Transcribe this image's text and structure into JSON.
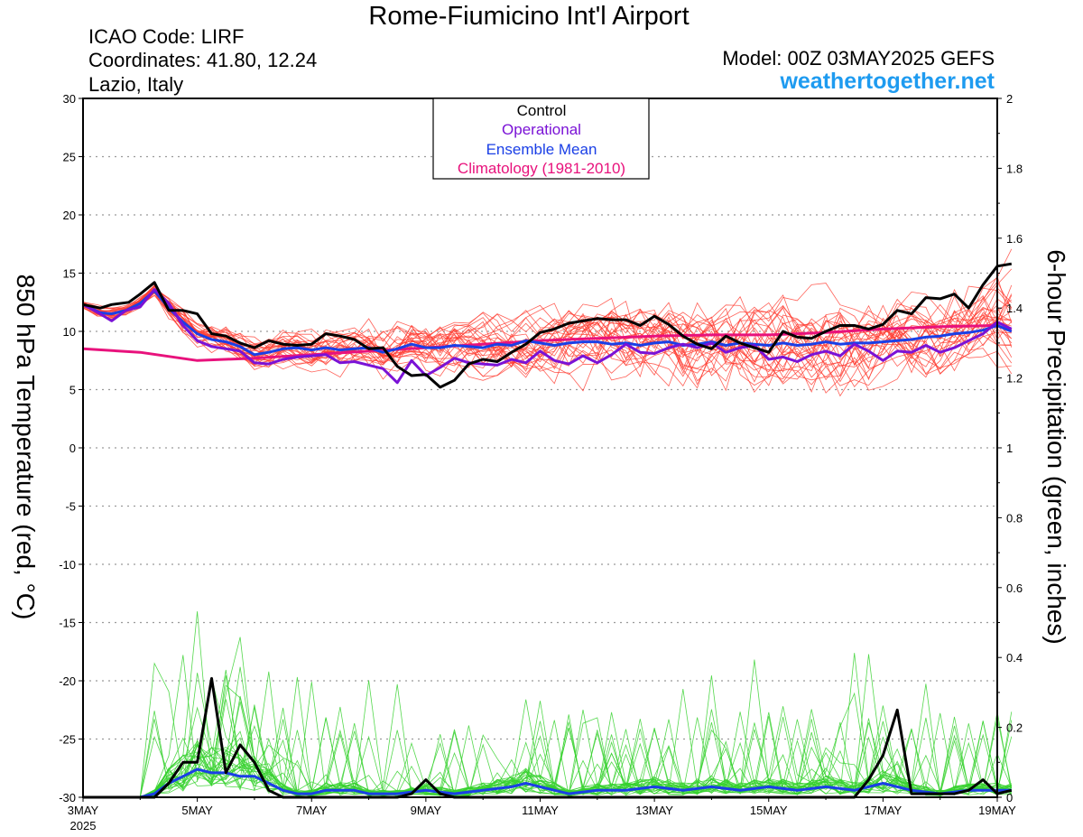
{
  "header": {
    "title": "Rome-Fiumicino Int'l Airport",
    "icao": "ICAO Code: LIRF",
    "coordinates": "Coordinates: 41.80, 12.24",
    "region": "Lazio, Italy",
    "model": "Model: 00Z 03MAY2025 GEFS",
    "site": "weathertogether.net"
  },
  "colors": {
    "temp_members": "#ff3b2f",
    "precip_members": "#36d12e",
    "control": "#000000",
    "operational": "#7a12d6",
    "ensemble_mean": "#1a3fe6",
    "climatology": "#e8127c",
    "site": "#1e9bf0"
  },
  "chart_data": {
    "type": "line",
    "xlabel": "",
    "ylabel": "850 hPa Temperature (red, °C)",
    "y2label": "6-hour Precipitation (green, inches)",
    "xlim": [
      0,
      16
    ],
    "ylim": [
      -30,
      30
    ],
    "y2lim": [
      0,
      2
    ],
    "x_ticks": [
      {
        "day": 0,
        "label": "3MAY",
        "sublabel": "2025"
      },
      {
        "day": 2,
        "label": "5MAY"
      },
      {
        "day": 4,
        "label": "7MAY"
      },
      {
        "day": 6,
        "label": "9MAY"
      },
      {
        "day": 8,
        "label": "11MAY"
      },
      {
        "day": 10,
        "label": "13MAY"
      },
      {
        "day": 12,
        "label": "15MAY"
      },
      {
        "day": 14,
        "label": "17MAY"
      },
      {
        "day": 16,
        "label": "19MAY"
      }
    ],
    "y_ticks": [
      30,
      25,
      20,
      15,
      10,
      5,
      0,
      -5,
      -10,
      -15,
      -20,
      -25,
      -30
    ],
    "y2_ticks": [
      {
        "value": 2,
        "label": "2"
      },
      {
        "value": 1.8,
        "label": "1.8"
      },
      {
        "value": 1.6,
        "label": "1.6"
      },
      {
        "value": 1.4,
        "label": "1.4"
      },
      {
        "value": 1.2,
        "label": "1.2"
      },
      {
        "value": 1,
        "label": "1"
      },
      {
        "value": 0.8,
        "label": "0.8"
      },
      {
        "value": 0.6,
        "label": "0.6"
      },
      {
        "value": 0.4,
        "label": "0.4"
      },
      {
        "value": 0.2,
        "label": "0.2"
      },
      {
        "value": 0,
        "label": "0"
      }
    ],
    "grid": "horizontal dotted",
    "legend_position": "top-center",
    "legend": [
      {
        "name": "Control",
        "color": "#000000"
      },
      {
        "name": "Operational",
        "color": "#7a12d6"
      },
      {
        "name": "Ensemble Mean",
        "color": "#1a3fe6"
      },
      {
        "name": "Climatology (1981-2010)",
        "color": "#e8127c"
      }
    ],
    "series_temperature": [
      {
        "name": "Control",
        "points": [
          [
            0,
            12.3
          ],
          [
            0.3,
            12.0
          ],
          [
            0.5,
            12.3
          ],
          [
            0.8,
            12.5
          ],
          [
            1.0,
            13.2
          ],
          [
            1.25,
            14.2
          ],
          [
            1.5,
            11.8
          ],
          [
            1.75,
            11.8
          ],
          [
            2.0,
            11.5
          ],
          [
            2.25,
            9.8
          ],
          [
            2.5,
            9.6
          ],
          [
            2.75,
            9.0
          ],
          [
            3.0,
            8.6
          ],
          [
            3.25,
            9.2
          ],
          [
            3.5,
            8.9
          ],
          [
            3.75,
            8.8
          ],
          [
            4.0,
            8.9
          ],
          [
            4.25,
            9.8
          ],
          [
            4.5,
            9.6
          ],
          [
            4.75,
            9.3
          ],
          [
            5.0,
            8.5
          ],
          [
            5.25,
            8.6
          ],
          [
            5.5,
            7.0
          ],
          [
            5.75,
            6.2
          ],
          [
            6.0,
            6.3
          ],
          [
            6.25,
            5.2
          ],
          [
            6.5,
            5.8
          ],
          [
            6.75,
            7.2
          ],
          [
            7.0,
            7.6
          ],
          [
            7.25,
            7.4
          ],
          [
            7.5,
            8.2
          ],
          [
            7.75,
            8.9
          ],
          [
            8.0,
            9.9
          ],
          [
            8.25,
            10.2
          ],
          [
            8.5,
            10.7
          ],
          [
            8.75,
            10.9
          ],
          [
            9.0,
            11.1
          ],
          [
            9.25,
            11.0
          ],
          [
            9.5,
            11.0
          ],
          [
            9.75,
            10.5
          ],
          [
            10.0,
            11.3
          ],
          [
            10.25,
            10.6
          ],
          [
            10.5,
            9.6
          ],
          [
            10.75,
            8.9
          ],
          [
            11.0,
            8.5
          ],
          [
            11.25,
            9.6
          ],
          [
            11.5,
            9.0
          ],
          [
            11.75,
            8.6
          ],
          [
            12.0,
            8.2
          ],
          [
            12.25,
            10.0
          ],
          [
            12.5,
            9.5
          ],
          [
            12.75,
            9.4
          ],
          [
            13.0,
            10.0
          ],
          [
            13.25,
            10.5
          ],
          [
            13.5,
            10.5
          ],
          [
            13.75,
            10.2
          ],
          [
            14.0,
            10.6
          ],
          [
            14.25,
            11.8
          ],
          [
            14.5,
            11.5
          ],
          [
            14.75,
            12.9
          ],
          [
            15.0,
            12.8
          ],
          [
            15.25,
            13.2
          ],
          [
            15.5,
            12.0
          ],
          [
            15.75,
            14.0
          ],
          [
            16.0,
            15.6
          ],
          [
            16.25,
            15.8
          ]
        ]
      },
      {
        "name": "Operational",
        "points": [
          [
            0,
            12.3
          ],
          [
            0.3,
            11.5
          ],
          [
            0.5,
            10.9
          ],
          [
            0.75,
            11.8
          ],
          [
            1.0,
            12.1
          ],
          [
            1.25,
            13.6
          ],
          [
            1.5,
            12.4
          ],
          [
            1.75,
            10.5
          ],
          [
            2.0,
            9.2
          ],
          [
            2.25,
            8.7
          ],
          [
            2.5,
            8.5
          ],
          [
            2.75,
            8.3
          ],
          [
            3.0,
            7.3
          ],
          [
            3.25,
            7.2
          ],
          [
            3.5,
            7.6
          ],
          [
            3.75,
            7.8
          ],
          [
            4.0,
            7.9
          ],
          [
            4.25,
            8.0
          ],
          [
            4.5,
            7.3
          ],
          [
            4.75,
            7.4
          ],
          [
            5.0,
            7.1
          ],
          [
            5.25,
            6.8
          ],
          [
            5.5,
            5.6
          ],
          [
            5.75,
            7.5
          ],
          [
            6.0,
            6.2
          ],
          [
            6.25,
            6.9
          ],
          [
            6.5,
            7.7
          ],
          [
            6.75,
            7.3
          ],
          [
            7.0,
            7.2
          ],
          [
            7.25,
            7.1
          ],
          [
            7.5,
            7.6
          ],
          [
            7.75,
            7.3
          ],
          [
            8.0,
            8.3
          ],
          [
            8.25,
            7.5
          ],
          [
            8.5,
            7.2
          ],
          [
            8.75,
            7.9
          ],
          [
            9.0,
            7.3
          ],
          [
            9.25,
            8.0
          ],
          [
            9.5,
            8.9
          ],
          [
            9.75,
            8.2
          ],
          [
            10.0,
            8.1
          ],
          [
            10.25,
            8.6
          ],
          [
            10.5,
            8.9
          ],
          [
            10.75,
            8.6
          ],
          [
            11.0,
            9.0
          ],
          [
            11.25,
            8.2
          ],
          [
            11.5,
            8.6
          ],
          [
            11.75,
            8.8
          ],
          [
            12.0,
            7.6
          ],
          [
            12.25,
            7.8
          ],
          [
            12.5,
            7.4
          ],
          [
            12.75,
            8.0
          ],
          [
            13.0,
            8.3
          ],
          [
            13.25,
            7.9
          ],
          [
            13.5,
            8.9
          ],
          [
            13.75,
            8.3
          ],
          [
            14.0,
            7.5
          ],
          [
            14.25,
            8.3
          ],
          [
            14.5,
            8.2
          ],
          [
            14.75,
            8.8
          ],
          [
            15.0,
            8.2
          ],
          [
            15.25,
            8.6
          ],
          [
            15.5,
            9.2
          ],
          [
            15.75,
            9.8
          ],
          [
            16.0,
            10.8
          ],
          [
            16.25,
            10.2
          ]
        ]
      },
      {
        "name": "Ensemble Mean",
        "points": [
          [
            0,
            12.3
          ],
          [
            0.3,
            11.6
          ],
          [
            0.5,
            11.5
          ],
          [
            0.75,
            11.8
          ],
          [
            1.0,
            12.4
          ],
          [
            1.25,
            13.5
          ],
          [
            1.5,
            12.0
          ],
          [
            1.75,
            10.8
          ],
          [
            2.0,
            9.8
          ],
          [
            2.25,
            9.3
          ],
          [
            2.5,
            9.1
          ],
          [
            2.75,
            8.7
          ],
          [
            3.0,
            8.0
          ],
          [
            3.25,
            8.2
          ],
          [
            3.5,
            8.5
          ],
          [
            3.75,
            8.6
          ],
          [
            4.0,
            8.4
          ],
          [
            4.25,
            8.6
          ],
          [
            4.5,
            8.4
          ],
          [
            4.75,
            8.5
          ],
          [
            5.0,
            8.6
          ],
          [
            5.25,
            8.2
          ],
          [
            5.5,
            8.5
          ],
          [
            5.75,
            8.9
          ],
          [
            6.0,
            8.6
          ],
          [
            6.25,
            8.6
          ],
          [
            6.5,
            8.8
          ],
          [
            6.75,
            8.7
          ],
          [
            7.0,
            8.6
          ],
          [
            7.25,
            8.9
          ],
          [
            7.5,
            8.8
          ],
          [
            7.75,
            9.2
          ],
          [
            8.0,
            9.0
          ],
          [
            8.25,
            8.8
          ],
          [
            8.5,
            9.0
          ],
          [
            8.75,
            9.1
          ],
          [
            9.0,
            9.1
          ],
          [
            9.25,
            8.9
          ],
          [
            9.5,
            9.0
          ],
          [
            9.75,
            8.8
          ],
          [
            10.0,
            9.0
          ],
          [
            10.25,
            9.1
          ],
          [
            10.5,
            8.8
          ],
          [
            10.75,
            8.9
          ],
          [
            11.0,
            9.1
          ],
          [
            11.25,
            8.8
          ],
          [
            11.5,
            9.0
          ],
          [
            11.75,
            8.9
          ],
          [
            12.0,
            8.8
          ],
          [
            12.25,
            9.0
          ],
          [
            12.5,
            8.8
          ],
          [
            12.75,
            8.9
          ],
          [
            13.0,
            9.1
          ],
          [
            13.25,
            8.9
          ],
          [
            13.5,
            9.0
          ],
          [
            13.75,
            9.0
          ],
          [
            14.0,
            9.1
          ],
          [
            14.25,
            9.2
          ],
          [
            14.5,
            9.3
          ],
          [
            14.75,
            9.5
          ],
          [
            15.0,
            9.6
          ],
          [
            15.25,
            9.8
          ],
          [
            15.5,
            9.9
          ],
          [
            15.75,
            10.1
          ],
          [
            16.0,
            10.5
          ],
          [
            16.25,
            10.0
          ]
        ]
      },
      {
        "name": "Climatology (1981-2010)",
        "points": [
          [
            0,
            8.5
          ],
          [
            1,
            8.2
          ],
          [
            2,
            7.5
          ],
          [
            3,
            7.7
          ],
          [
            4,
            8.0
          ],
          [
            5,
            8.3
          ],
          [
            6,
            8.6
          ],
          [
            7,
            8.9
          ],
          [
            8,
            9.2
          ],
          [
            9,
            9.4
          ],
          [
            10,
            9.6
          ],
          [
            11,
            9.7
          ],
          [
            12,
            9.7
          ],
          [
            13,
            9.9
          ],
          [
            14,
            10.2
          ],
          [
            15,
            10.4
          ],
          [
            16,
            10.5
          ],
          [
            16.25,
            10.0
          ]
        ]
      }
    ],
    "series_precipitation": [
      {
        "name": "Control",
        "points": [
          [
            0,
            0
          ],
          [
            1.25,
            0
          ],
          [
            1.5,
            0.04
          ],
          [
            1.75,
            0.1
          ],
          [
            2.0,
            0.1
          ],
          [
            2.25,
            0.34
          ],
          [
            2.5,
            0.07
          ],
          [
            2.75,
            0.15
          ],
          [
            3.0,
            0.1
          ],
          [
            3.25,
            0.02
          ],
          [
            3.5,
            0
          ],
          [
            5.5,
            0
          ],
          [
            5.75,
            0.01
          ],
          [
            6.0,
            0.05
          ],
          [
            6.25,
            0.01
          ],
          [
            6.5,
            0
          ],
          [
            13.5,
            0
          ],
          [
            13.75,
            0.05
          ],
          [
            14.0,
            0.12
          ],
          [
            14.25,
            0.25
          ],
          [
            14.5,
            0.01
          ],
          [
            15.25,
            0.01
          ],
          [
            15.5,
            0.02
          ],
          [
            15.75,
            0.05
          ],
          [
            16.0,
            0.01
          ],
          [
            16.25,
            0.02
          ]
        ]
      },
      {
        "name": "Ensemble Mean",
        "points": [
          [
            0,
            0
          ],
          [
            1.0,
            0
          ],
          [
            1.25,
            0.01
          ],
          [
            1.5,
            0.04
          ],
          [
            1.75,
            0.06
          ],
          [
            2.0,
            0.08
          ],
          [
            2.25,
            0.07
          ],
          [
            2.5,
            0.07
          ],
          [
            2.75,
            0.06
          ],
          [
            3.0,
            0.06
          ],
          [
            3.25,
            0.04
          ],
          [
            3.5,
            0.02
          ],
          [
            3.75,
            0.01
          ],
          [
            4.0,
            0.01
          ],
          [
            4.25,
            0.02
          ],
          [
            4.5,
            0.02
          ],
          [
            4.75,
            0.02
          ],
          [
            5.0,
            0.01
          ],
          [
            5.5,
            0.01
          ],
          [
            6.0,
            0.02
          ],
          [
            6.5,
            0.01
          ],
          [
            7.0,
            0.02
          ],
          [
            7.5,
            0.03
          ],
          [
            7.75,
            0.04
          ],
          [
            8.0,
            0.03
          ],
          [
            8.5,
            0.01
          ],
          [
            9.0,
            0.02
          ],
          [
            9.5,
            0.02
          ],
          [
            10.0,
            0.03
          ],
          [
            10.5,
            0.02
          ],
          [
            11.0,
            0.03
          ],
          [
            11.5,
            0.02
          ],
          [
            12.0,
            0.03
          ],
          [
            12.5,
            0.02
          ],
          [
            13.0,
            0.03
          ],
          [
            13.5,
            0.02
          ],
          [
            14.0,
            0.04
          ],
          [
            14.5,
            0.02
          ],
          [
            15.0,
            0.01
          ],
          [
            15.5,
            0.02
          ],
          [
            16.0,
            0.02
          ],
          [
            16.25,
            0.02
          ]
        ]
      }
    ]
  }
}
